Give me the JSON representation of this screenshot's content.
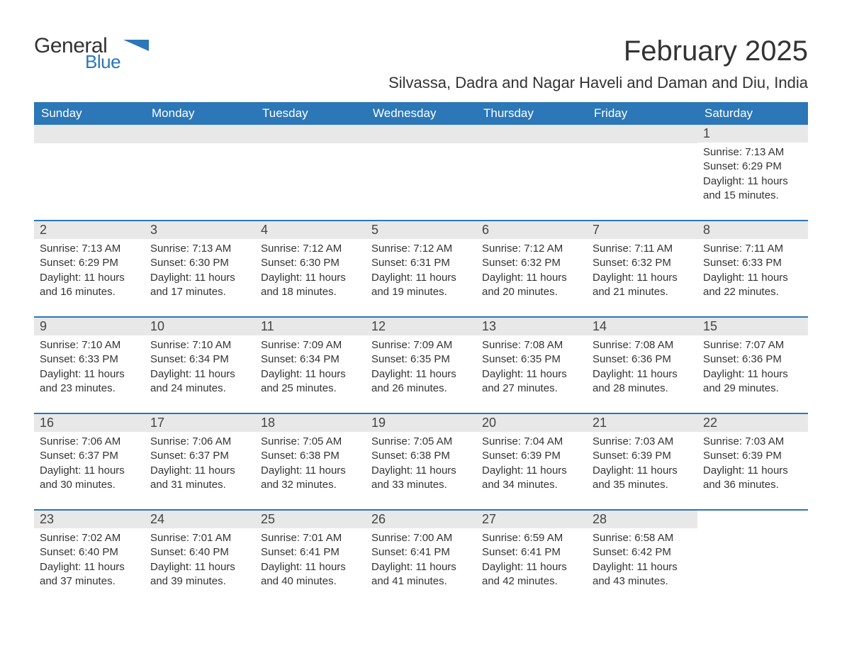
{
  "logo": {
    "general": "General",
    "blue": "Blue",
    "arrow_color": "#2b77b8"
  },
  "title": "February 2025",
  "location": "Silvassa, Dadra and Nagar Haveli and Daman and Diu, India",
  "colors": {
    "header_bg": "#2b77b8",
    "header_text": "#ffffff",
    "daynum_bg": "#e8e8e8",
    "row_divider": "#2b77b8",
    "text": "#333333",
    "background": "#ffffff"
  },
  "day_headers": [
    "Sunday",
    "Monday",
    "Tuesday",
    "Wednesday",
    "Thursday",
    "Friday",
    "Saturday"
  ],
  "weeks": [
    [
      null,
      null,
      null,
      null,
      null,
      null,
      {
        "num": "1",
        "sunrise": "Sunrise: 7:13 AM",
        "sunset": "Sunset: 6:29 PM",
        "daylight1": "Daylight: 11 hours",
        "daylight2": "and 15 minutes."
      }
    ],
    [
      {
        "num": "2",
        "sunrise": "Sunrise: 7:13 AM",
        "sunset": "Sunset: 6:29 PM",
        "daylight1": "Daylight: 11 hours",
        "daylight2": "and 16 minutes."
      },
      {
        "num": "3",
        "sunrise": "Sunrise: 7:13 AM",
        "sunset": "Sunset: 6:30 PM",
        "daylight1": "Daylight: 11 hours",
        "daylight2": "and 17 minutes."
      },
      {
        "num": "4",
        "sunrise": "Sunrise: 7:12 AM",
        "sunset": "Sunset: 6:30 PM",
        "daylight1": "Daylight: 11 hours",
        "daylight2": "and 18 minutes."
      },
      {
        "num": "5",
        "sunrise": "Sunrise: 7:12 AM",
        "sunset": "Sunset: 6:31 PM",
        "daylight1": "Daylight: 11 hours",
        "daylight2": "and 19 minutes."
      },
      {
        "num": "6",
        "sunrise": "Sunrise: 7:12 AM",
        "sunset": "Sunset: 6:32 PM",
        "daylight1": "Daylight: 11 hours",
        "daylight2": "and 20 minutes."
      },
      {
        "num": "7",
        "sunrise": "Sunrise: 7:11 AM",
        "sunset": "Sunset: 6:32 PM",
        "daylight1": "Daylight: 11 hours",
        "daylight2": "and 21 minutes."
      },
      {
        "num": "8",
        "sunrise": "Sunrise: 7:11 AM",
        "sunset": "Sunset: 6:33 PM",
        "daylight1": "Daylight: 11 hours",
        "daylight2": "and 22 minutes."
      }
    ],
    [
      {
        "num": "9",
        "sunrise": "Sunrise: 7:10 AM",
        "sunset": "Sunset: 6:33 PM",
        "daylight1": "Daylight: 11 hours",
        "daylight2": "and 23 minutes."
      },
      {
        "num": "10",
        "sunrise": "Sunrise: 7:10 AM",
        "sunset": "Sunset: 6:34 PM",
        "daylight1": "Daylight: 11 hours",
        "daylight2": "and 24 minutes."
      },
      {
        "num": "11",
        "sunrise": "Sunrise: 7:09 AM",
        "sunset": "Sunset: 6:34 PM",
        "daylight1": "Daylight: 11 hours",
        "daylight2": "and 25 minutes."
      },
      {
        "num": "12",
        "sunrise": "Sunrise: 7:09 AM",
        "sunset": "Sunset: 6:35 PM",
        "daylight1": "Daylight: 11 hours",
        "daylight2": "and 26 minutes."
      },
      {
        "num": "13",
        "sunrise": "Sunrise: 7:08 AM",
        "sunset": "Sunset: 6:35 PM",
        "daylight1": "Daylight: 11 hours",
        "daylight2": "and 27 minutes."
      },
      {
        "num": "14",
        "sunrise": "Sunrise: 7:08 AM",
        "sunset": "Sunset: 6:36 PM",
        "daylight1": "Daylight: 11 hours",
        "daylight2": "and 28 minutes."
      },
      {
        "num": "15",
        "sunrise": "Sunrise: 7:07 AM",
        "sunset": "Sunset: 6:36 PM",
        "daylight1": "Daylight: 11 hours",
        "daylight2": "and 29 minutes."
      }
    ],
    [
      {
        "num": "16",
        "sunrise": "Sunrise: 7:06 AM",
        "sunset": "Sunset: 6:37 PM",
        "daylight1": "Daylight: 11 hours",
        "daylight2": "and 30 minutes."
      },
      {
        "num": "17",
        "sunrise": "Sunrise: 7:06 AM",
        "sunset": "Sunset: 6:37 PM",
        "daylight1": "Daylight: 11 hours",
        "daylight2": "and 31 minutes."
      },
      {
        "num": "18",
        "sunrise": "Sunrise: 7:05 AM",
        "sunset": "Sunset: 6:38 PM",
        "daylight1": "Daylight: 11 hours",
        "daylight2": "and 32 minutes."
      },
      {
        "num": "19",
        "sunrise": "Sunrise: 7:05 AM",
        "sunset": "Sunset: 6:38 PM",
        "daylight1": "Daylight: 11 hours",
        "daylight2": "and 33 minutes."
      },
      {
        "num": "20",
        "sunrise": "Sunrise: 7:04 AM",
        "sunset": "Sunset: 6:39 PM",
        "daylight1": "Daylight: 11 hours",
        "daylight2": "and 34 minutes."
      },
      {
        "num": "21",
        "sunrise": "Sunrise: 7:03 AM",
        "sunset": "Sunset: 6:39 PM",
        "daylight1": "Daylight: 11 hours",
        "daylight2": "and 35 minutes."
      },
      {
        "num": "22",
        "sunrise": "Sunrise: 7:03 AM",
        "sunset": "Sunset: 6:39 PM",
        "daylight1": "Daylight: 11 hours",
        "daylight2": "and 36 minutes."
      }
    ],
    [
      {
        "num": "23",
        "sunrise": "Sunrise: 7:02 AM",
        "sunset": "Sunset: 6:40 PM",
        "daylight1": "Daylight: 11 hours",
        "daylight2": "and 37 minutes."
      },
      {
        "num": "24",
        "sunrise": "Sunrise: 7:01 AM",
        "sunset": "Sunset: 6:40 PM",
        "daylight1": "Daylight: 11 hours",
        "daylight2": "and 39 minutes."
      },
      {
        "num": "25",
        "sunrise": "Sunrise: 7:01 AM",
        "sunset": "Sunset: 6:41 PM",
        "daylight1": "Daylight: 11 hours",
        "daylight2": "and 40 minutes."
      },
      {
        "num": "26",
        "sunrise": "Sunrise: 7:00 AM",
        "sunset": "Sunset: 6:41 PM",
        "daylight1": "Daylight: 11 hours",
        "daylight2": "and 41 minutes."
      },
      {
        "num": "27",
        "sunrise": "Sunrise: 6:59 AM",
        "sunset": "Sunset: 6:41 PM",
        "daylight1": "Daylight: 11 hours",
        "daylight2": "and 42 minutes."
      },
      {
        "num": "28",
        "sunrise": "Sunrise: 6:58 AM",
        "sunset": "Sunset: 6:42 PM",
        "daylight1": "Daylight: 11 hours",
        "daylight2": "and 43 minutes."
      },
      null
    ]
  ]
}
